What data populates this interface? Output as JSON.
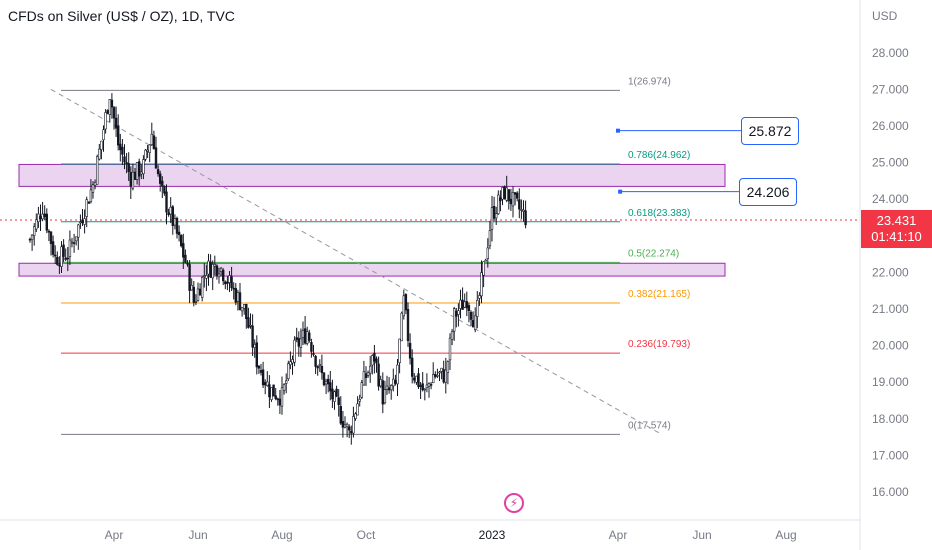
{
  "header": {
    "title": "CFDs on Silver (US$ / OZ), 1D, TVC"
  },
  "axis": {
    "currency": "USD"
  },
  "current_price": {
    "price": "23.431",
    "countdown": "01:41:10"
  },
  "annotations": {
    "target_high": "25.872",
    "target_low": "24.206"
  },
  "chart_data": {
    "type": "candlestick",
    "title": "CFDs on Silver (US$ / OZ), 1D, TVC",
    "ylabel": "USD",
    "ylim": [
      15.5,
      29
    ],
    "y_ticks": [
      "28.000",
      "27.000",
      "26.000",
      "25.000",
      "24.000",
      "23.000",
      "22.000",
      "21.000",
      "20.000",
      "19.000",
      "18.000",
      "17.000",
      "16.000"
    ],
    "x_ticks": [
      {
        "label": "Apr",
        "month": 2
      },
      {
        "label": "Jun",
        "month": 4
      },
      {
        "label": "Aug",
        "month": 6
      },
      {
        "label": "Oct",
        "month": 8
      },
      {
        "label": "2023",
        "month": 11
      },
      {
        "label": "Apr",
        "month": 14
      },
      {
        "label": "Jun",
        "month": 16
      },
      {
        "label": "Aug",
        "month": 18
      }
    ],
    "price_path": [
      [
        0.0,
        22.9
      ],
      [
        0.3,
        23.8
      ],
      [
        0.6,
        22.4
      ],
      [
        0.9,
        22.5
      ],
      [
        1.2,
        23.4
      ],
      [
        1.5,
        24.4
      ],
      [
        1.7,
        25.6
      ],
      [
        1.9,
        26.9
      ],
      [
        2.1,
        25.5
      ],
      [
        2.4,
        24.6
      ],
      [
        2.7,
        24.9
      ],
      [
        2.9,
        25.8
      ],
      [
        3.1,
        24.3
      ],
      [
        3.4,
        23.4
      ],
      [
        3.7,
        22.3
      ],
      [
        3.9,
        21.2
      ],
      [
        4.2,
        22.1
      ],
      [
        4.5,
        22.2
      ],
      [
        4.8,
        21.6
      ],
      [
        5.1,
        21.0
      ],
      [
        5.4,
        19.6
      ],
      [
        5.7,
        18.8
      ],
      [
        6.0,
        18.6
      ],
      [
        6.3,
        19.9
      ],
      [
        6.6,
        20.4
      ],
      [
        6.9,
        19.3
      ],
      [
        7.2,
        18.6
      ],
      [
        7.6,
        17.6
      ],
      [
        7.9,
        18.9
      ],
      [
        8.2,
        19.7
      ],
      [
        8.4,
        18.6
      ],
      [
        8.7,
        18.9
      ],
      [
        8.9,
        21.2
      ],
      [
        9.1,
        19.3
      ],
      [
        9.4,
        18.7
      ],
      [
        9.6,
        19.2
      ],
      [
        9.9,
        19.2
      ],
      [
        10.1,
        20.8
      ],
      [
        10.4,
        21.3
      ],
      [
        10.6,
        20.6
      ],
      [
        10.8,
        22.1
      ],
      [
        11.0,
        23.6
      ],
      [
        11.3,
        24.2
      ],
      [
        11.6,
        23.8
      ],
      [
        11.8,
        23.5
      ]
    ],
    "fibonacci": [
      {
        "level": "1",
        "value": 26.974,
        "label": "1(26.974)",
        "color": "#787b86"
      },
      {
        "level": "0.786",
        "value": 24.962,
        "label": "0.786(24.962)",
        "color": "#089981"
      },
      {
        "level": "0.618",
        "value": 23.383,
        "label": "0.618(23.383)",
        "color": "#089981"
      },
      {
        "level": "0.5",
        "value": 22.274,
        "label": "0.5(22.274)",
        "color": "#4caf50"
      },
      {
        "level": "0.382",
        "value": 21.165,
        "label": "0.382(21.165)",
        "color": "#ff9800"
      },
      {
        "level": "0.236",
        "value": 19.793,
        "label": "0.236(19.793)",
        "color": "#f23645"
      },
      {
        "level": "0",
        "value": 17.574,
        "label": "0(17.574)",
        "color": "#787b86"
      }
    ],
    "zones": [
      {
        "name": "resistance-zone",
        "top": 24.95,
        "bottom": 24.35,
        "color": "#9c27b0"
      },
      {
        "name": "support-zone",
        "top": 22.25,
        "bottom": 21.9,
        "color": "#9c27b0"
      }
    ],
    "trendline": {
      "from": [
        0.5,
        27.0
      ],
      "to": [
        15.0,
        17.6
      ],
      "style": "dashed",
      "color": "#9598a1"
    },
    "current_price_line": {
      "value": 23.431,
      "color": "#f23645"
    },
    "targets": [
      {
        "value": 25.872,
        "from_month": 14.0
      },
      {
        "value": 24.206,
        "from_month": 14.05
      }
    ],
    "colors": {
      "up": "#131722",
      "down": "#131722",
      "axis": "#787b86",
      "grid_border": "#e0e3eb",
      "target": "#2962ff"
    }
  }
}
